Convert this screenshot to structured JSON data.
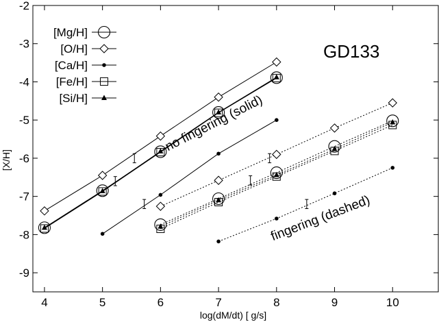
{
  "chart_data": {
    "type": "line",
    "title": "GD133",
    "xlabel": "log(dM/dt) [ g/s]",
    "ylabel": "[X/H]",
    "xlim": [
      3.8,
      10.8
    ],
    "ylim": [
      -9.5,
      -2
    ],
    "xticks": [
      "4",
      "5",
      "6",
      "7",
      "8",
      "9",
      "10"
    ],
    "yticks": [
      "-2",
      "-3",
      "-4",
      "-5",
      "-6",
      "-7",
      "-8",
      "-9"
    ],
    "grid": false,
    "legend_position": "top-left",
    "series": [
      {
        "name": "[Mg/H]",
        "marker": "circle-large",
        "group": "no fingering (solid)",
        "line": "solid",
        "x": [
          4,
          5,
          6,
          7,
          8
        ],
        "y": [
          -7.82,
          -6.85,
          -5.83,
          -4.8,
          -3.89
        ]
      },
      {
        "name": "[O/H]",
        "marker": "diamond",
        "group": "no fingering (solid)",
        "line": "solid",
        "x": [
          4,
          5,
          6,
          7,
          8
        ],
        "y": [
          -7.38,
          -6.45,
          -5.42,
          -4.4,
          -3.48
        ]
      },
      {
        "name": "[Ca/H]",
        "marker": "dot",
        "group": "no fingering (solid)",
        "line": "solid",
        "x": [
          5,
          6,
          7,
          8
        ],
        "y": [
          -7.98,
          -6.96,
          -5.88,
          -5.0
        ]
      },
      {
        "name": "[Fe/H]",
        "marker": "square",
        "group": "no fingering (solid)",
        "line": "solid",
        "x": [
          4,
          5,
          6,
          7,
          8
        ],
        "y": [
          -7.84,
          -6.87,
          -5.84,
          -4.81,
          -3.9
        ]
      },
      {
        "name": "[Si/H]",
        "marker": "triangle",
        "group": "no fingering (solid)",
        "line": "solid",
        "x": [
          4,
          5,
          6,
          7,
          8
        ],
        "y": [
          -7.82,
          -6.86,
          -5.82,
          -4.8,
          -3.88
        ]
      },
      {
        "name": "[Mg/H]",
        "marker": "circle-large",
        "group": "fingering (dashed)",
        "line": "dashed",
        "x": [
          6,
          7,
          8,
          9,
          10
        ],
        "y": [
          -7.74,
          -7.06,
          -6.38,
          -5.69,
          -5.02
        ]
      },
      {
        "name": "[O/H]",
        "marker": "diamond",
        "group": "fingering (dashed)",
        "line": "dashed",
        "x": [
          6,
          7,
          8,
          9,
          10
        ],
        "y": [
          -7.26,
          -6.58,
          -5.9,
          -5.21,
          -4.55
        ]
      },
      {
        "name": "[Ca/H]",
        "marker": "dot",
        "group": "fingering (dashed)",
        "line": "dashed",
        "x": [
          7,
          8,
          9,
          10
        ],
        "y": [
          -8.18,
          -7.58,
          -6.92,
          -6.25
        ]
      },
      {
        "name": "[Fe/H]",
        "marker": "square",
        "group": "fingering (dashed)",
        "line": "dashed",
        "x": [
          6,
          7,
          8,
          9,
          10
        ],
        "y": [
          -7.85,
          -7.15,
          -6.48,
          -5.81,
          -5.13
        ]
      },
      {
        "name": "[Si/H]",
        "marker": "triangle",
        "group": "fingering (dashed)",
        "line": "dashed",
        "x": [
          6,
          7,
          8,
          9,
          10
        ],
        "y": [
          -7.79,
          -7.1,
          -6.44,
          -5.76,
          -5.06
        ]
      }
    ],
    "error_bars": [
      {
        "x": 5.55,
        "y": -6.0,
        "err": 0.12
      },
      {
        "x": 5.22,
        "y": -6.6,
        "err": 0.12
      },
      {
        "x": 5.72,
        "y": -7.2,
        "err": 0.12
      },
      {
        "x": 7.88,
        "y": -6.0,
        "err": 0.12
      },
      {
        "x": 7.55,
        "y": -6.58,
        "err": 0.12
      },
      {
        "x": 8.52,
        "y": -7.2,
        "err": 0.12
      }
    ],
    "annotations": [
      {
        "text": "no fingering (solid)",
        "x": 6.95,
        "y": -5.18,
        "rotation_deg": -27
      },
      {
        "text": "fingering (dashed)",
        "x": 8.78,
        "y": -7.67,
        "rotation_deg": -21
      }
    ]
  }
}
